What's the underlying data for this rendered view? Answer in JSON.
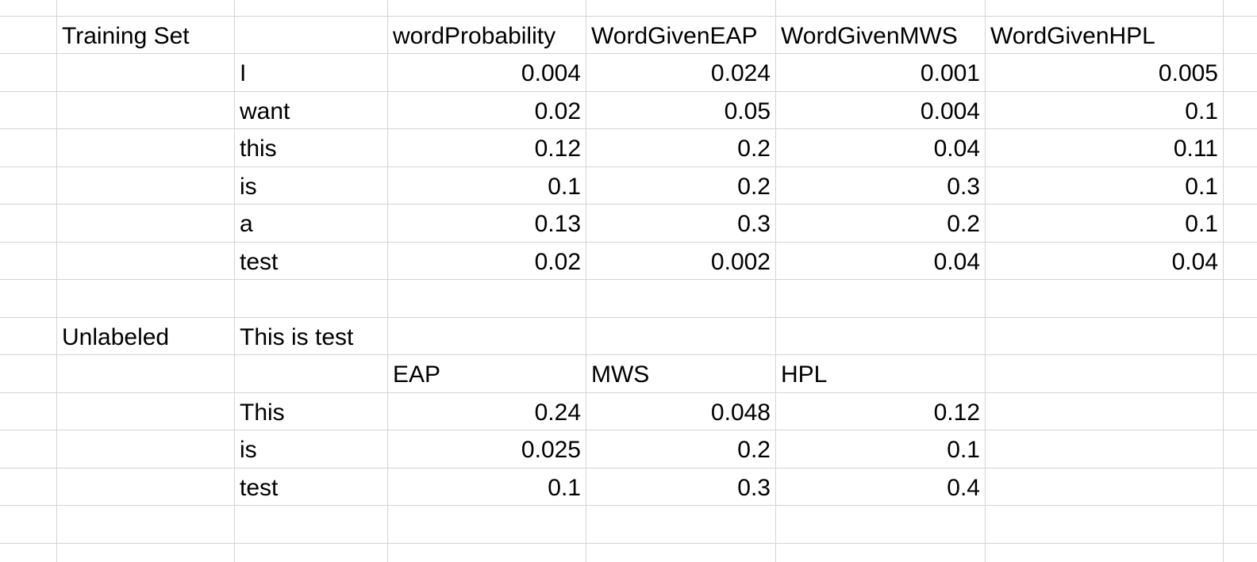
{
  "training": {
    "section_label": "Training Set",
    "headers": [
      "wordProbability",
      "WordGivenEAP",
      "WordGivenMWS",
      "WordGivenHPL"
    ],
    "rows": [
      {
        "word": "I",
        "values": [
          "0.004",
          "0.024",
          "0.001",
          "0.005"
        ]
      },
      {
        "word": "want",
        "values": [
          "0.02",
          "0.05",
          "0.004",
          "0.1"
        ]
      },
      {
        "word": "this",
        "values": [
          "0.12",
          "0.2",
          "0.04",
          "0.11"
        ]
      },
      {
        "word": "is",
        "values": [
          "0.1",
          "0.2",
          "0.3",
          "0.1"
        ]
      },
      {
        "word": "a",
        "values": [
          "0.13",
          "0.3",
          "0.2",
          "0.1"
        ]
      },
      {
        "word": "test",
        "values": [
          "0.02",
          "0.002",
          "0.04",
          "0.04"
        ]
      }
    ]
  },
  "unlabeled": {
    "section_label": "Unlabeled",
    "sentence": "This is test",
    "headers": [
      "EAP",
      "MWS",
      "HPL"
    ],
    "rows": [
      {
        "word": "This",
        "values": [
          "0.24",
          "0.048",
          "0.12"
        ]
      },
      {
        "word": "is",
        "values": [
          "0.025",
          "0.2",
          "0.1"
        ]
      },
      {
        "word": "test",
        "values": [
          "0.1",
          "0.3",
          "0.4"
        ]
      }
    ]
  }
}
